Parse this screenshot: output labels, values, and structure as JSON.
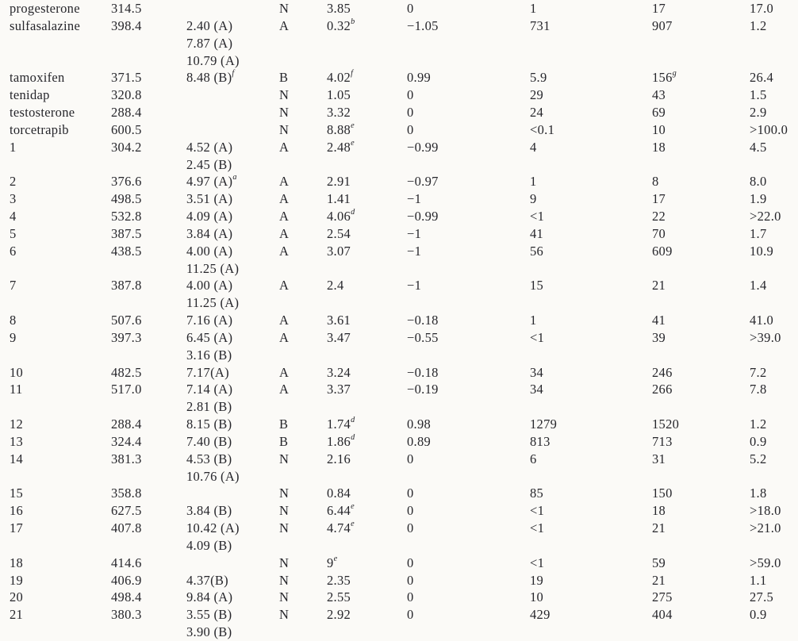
{
  "colors": {
    "page_background": "#fbfaf7",
    "text": "#26262b"
  },
  "table": {
    "rows": [
      [
        "progesterone",
        "314.5",
        "",
        "N",
        "3.85",
        "0",
        "1",
        "17",
        "17.0"
      ],
      [
        "sulfasalazine",
        "398.4",
        "2.40 (A)",
        "A",
        "0.32^b",
        "−1.05",
        "731",
        "907",
        "1.2"
      ],
      [
        "",
        "",
        "7.87 (A)",
        "",
        "",
        "",
        "",
        "",
        ""
      ],
      [
        "",
        "",
        "10.79 (A)",
        "",
        "",
        "",
        "",
        "",
        ""
      ],
      [
        "tamoxifen",
        "371.5",
        "8.48 (B)^f",
        "B",
        "4.02^f",
        "0.99",
        "5.9",
        "156^g",
        "26.4"
      ],
      [
        "tenidap",
        "320.8",
        "",
        "N",
        "1.05",
        "0",
        "29",
        "43",
        "1.5"
      ],
      [
        "testosterone",
        "288.4",
        "",
        "N",
        "3.32",
        "0",
        "24",
        "69",
        "2.9"
      ],
      [
        "torcetrapib",
        "600.5",
        "",
        "N",
        "8.88^e",
        "0",
        "<0.1",
        "10",
        ">100.0"
      ],
      [
        "1",
        "304.2",
        "4.52 (A)",
        "A",
        "2.48^e",
        "−0.99",
        "4",
        "18",
        "4.5"
      ],
      [
        "",
        "",
        "2.45 (B)",
        "",
        "",
        "",
        "",
        "",
        ""
      ],
      [
        "2",
        "376.6",
        "4.97 (A)^a",
        "A",
        "2.91",
        "−0.97",
        "1",
        "8",
        "8.0"
      ],
      [
        "3",
        "498.5",
        "3.51 (A)",
        "A",
        "1.41",
        "−1",
        "9",
        "17",
        "1.9"
      ],
      [
        "4",
        "532.8",
        "4.09 (A)",
        "A",
        "4.06^d",
        "−0.99",
        "<1",
        "22",
        ">22.0"
      ],
      [
        "5",
        "387.5",
        "3.84 (A)",
        "A",
        "2.54",
        "−1",
        "41",
        "70",
        "1.7"
      ],
      [
        "6",
        "438.5",
        "4.00 (A)",
        "A",
        "3.07",
        "−1",
        "56",
        "609",
        "10.9"
      ],
      [
        "",
        "",
        "11.25 (A)",
        "",
        "",
        "",
        "",
        "",
        ""
      ],
      [
        "7",
        "387.8",
        "4.00 (A)",
        "A",
        "2.4",
        "−1",
        "15",
        "21",
        "1.4"
      ],
      [
        "",
        "",
        "11.25 (A)",
        "",
        "",
        "",
        "",
        "",
        ""
      ],
      [
        "8",
        "507.6",
        "7.16 (A)",
        "A",
        "3.61",
        "−0.18",
        "1",
        "41",
        "41.0"
      ],
      [
        "9",
        "397.3",
        "6.45 (A)",
        "A",
        "3.47",
        "−0.55",
        "<1",
        "39",
        ">39.0"
      ],
      [
        "",
        "",
        "3.16 (B)",
        "",
        "",
        "",
        "",
        "",
        ""
      ],
      [
        "10",
        "482.5",
        "7.17(A)",
        "A",
        "3.24",
        "−0.18",
        "34",
        "246",
        "7.2"
      ],
      [
        "11",
        "517.0",
        "7.14 (A)",
        "A",
        "3.37",
        "−0.19",
        "34",
        "266",
        "7.8"
      ],
      [
        "",
        "",
        "2.81 (B)",
        "",
        "",
        "",
        "",
        "",
        ""
      ],
      [
        "12",
        "288.4",
        "8.15 (B)",
        "B",
        "1.74^d",
        "0.98",
        "1279",
        "1520",
        "1.2"
      ],
      [
        "13",
        "324.4",
        "7.40 (B)",
        "B",
        "1.86^d",
        "0.89",
        "813",
        "713",
        "0.9"
      ],
      [
        "14",
        "381.3",
        "4.53 (B)",
        "N",
        "2.16",
        "0",
        "6",
        "31",
        "5.2"
      ],
      [
        "",
        "",
        "10.76 (A)",
        "",
        "",
        "",
        "",
        "",
        ""
      ],
      [
        "15",
        "358.8",
        "",
        "N",
        "0.84",
        "0",
        "85",
        "150",
        "1.8"
      ],
      [
        "16",
        "627.5",
        "3.84 (B)",
        "N",
        "6.44^e",
        "0",
        "<1",
        "18",
        ">18.0"
      ],
      [
        "17",
        "407.8",
        "10.42 (A)",
        "N",
        "4.74^e",
        "0",
        "<1",
        "21",
        ">21.0"
      ],
      [
        "",
        "",
        "4.09 (B)",
        "",
        "",
        "",
        "",
        "",
        ""
      ],
      [
        "18",
        "414.6",
        "",
        "N",
        "9^e",
        "0",
        "<1",
        "59",
        ">59.0"
      ],
      [
        "19",
        "406.9",
        "4.37(B)",
        "N",
        "2.35",
        "0",
        "19",
        "21",
        "1.1"
      ],
      [
        "20",
        "498.4",
        "9.84 (A)",
        "N",
        "2.55",
        "0",
        "10",
        "275",
        "27.5"
      ],
      [
        "21",
        "380.3",
        "3.55 (B)",
        "N",
        "2.92",
        "0",
        "429",
        "404",
        "0.9"
      ],
      [
        "",
        "",
        "3.90 (B)",
        "",
        "",
        "",
        "",
        "",
        ""
      ]
    ]
  }
}
